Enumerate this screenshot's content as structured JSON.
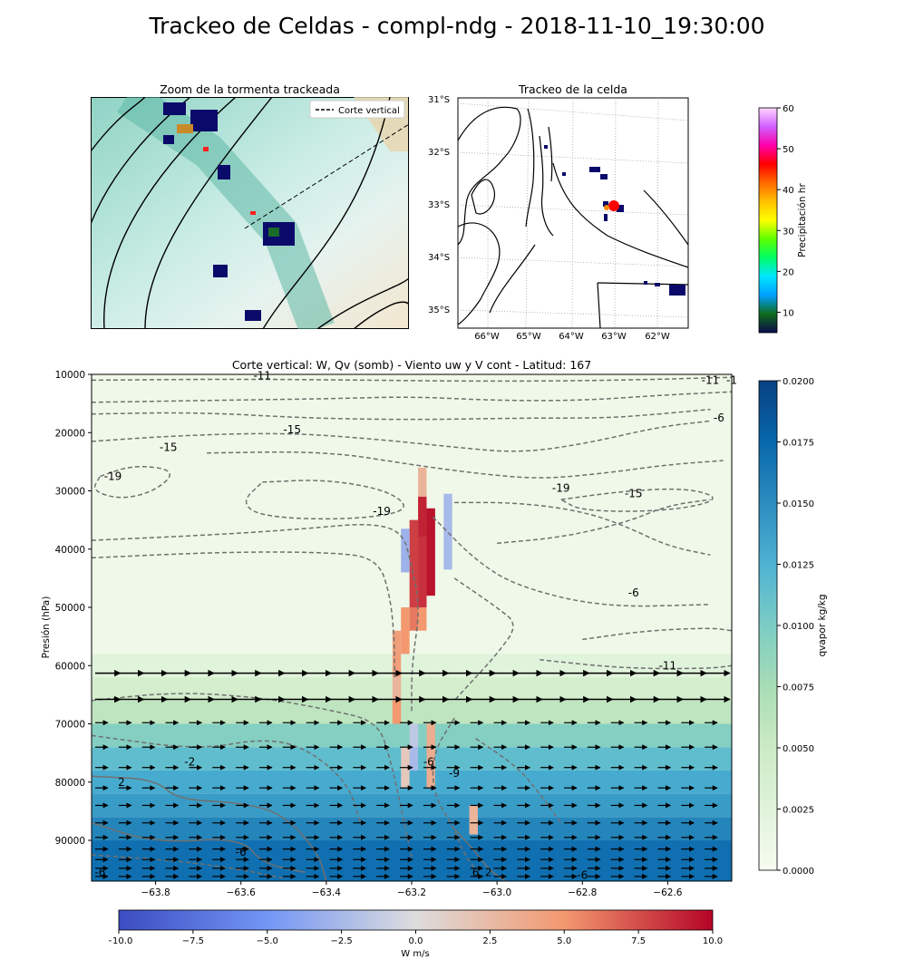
{
  "figure": {
    "title": "Trackeo de Celdas - compl-ndg - 2018-11-10_19:30:00"
  },
  "zoom_panel": {
    "title": "Zoom de la tormenta trackeada",
    "legend": {
      "label": "Corte vertical",
      "line_color": "#000000",
      "line_style": "dashed"
    },
    "placement": "upper-left"
  },
  "track_panel": {
    "title": "Trackeo de la celda",
    "lat_labels": [
      "31°S",
      "32°S",
      "33°S",
      "34°S",
      "35°S"
    ],
    "lon_labels": [
      "66°W",
      "65°W",
      "64°W",
      "63°W",
      "62°W"
    ],
    "cell_marker_colors": [
      "#ff0000",
      "#ff8c00"
    ]
  },
  "precip_colorbar": {
    "label": "Precipitación hr",
    "ticks": [
      "10",
      "20",
      "30",
      "40",
      "50",
      "60"
    ],
    "range": [
      5,
      60
    ],
    "colors": [
      "#0a0a4a",
      "#0e6b1a",
      "#00a0ff",
      "#00e6ff",
      "#00ff66",
      "#5dff00",
      "#ffff00",
      "#ffc000",
      "#ff6a00",
      "#ff0000",
      "#ff00aa",
      "#d060ff",
      "#ffd6ff"
    ]
  },
  "chart_data": {
    "type": "heatmap",
    "title": "Corte vertical: W, Qv (somb) - Viento uw y V cont - Latitud: 167",
    "xlabel": "",
    "ylabel": "Presión (hPa)",
    "xlim": [
      -63.95,
      -62.45
    ],
    "ylim": [
      97000,
      10000
    ],
    "x_ticks": [
      -63.8,
      -63.6,
      -63.4,
      -63.2,
      -63.0,
      -62.8,
      -62.6
    ],
    "x_tick_labels": [
      "−63.8",
      "−63.6",
      "−63.4",
      "−63.2",
      "−63.0",
      "−62.8",
      "−62.6"
    ],
    "y_ticks": [
      10000,
      20000,
      30000,
      40000,
      50000,
      60000,
      70000,
      80000,
      90000
    ],
    "y_tick_labels": [
      "10000",
      "20000",
      "30000",
      "40000",
      "50000",
      "60000",
      "70000",
      "80000",
      "90000"
    ],
    "qvapor_layers": [
      {
        "p_top": 10000,
        "p_bot": 58000,
        "qv": 0.0008
      },
      {
        "p_top": 58000,
        "p_bot": 62000,
        "qv": 0.0025
      },
      {
        "p_top": 62000,
        "p_bot": 66000,
        "qv": 0.004
      },
      {
        "p_top": 66000,
        "p_bot": 70000,
        "qv": 0.006
      },
      {
        "p_top": 70000,
        "p_bot": 74000,
        "qv": 0.0095
      },
      {
        "p_top": 74000,
        "p_bot": 78000,
        "qv": 0.0115
      },
      {
        "p_top": 78000,
        "p_bot": 82000,
        "qv": 0.013
      },
      {
        "p_top": 82000,
        "p_bot": 86000,
        "qv": 0.014
      },
      {
        "p_top": 86000,
        "p_bot": 90000,
        "qv": 0.0155
      },
      {
        "p_top": 90000,
        "p_bot": 97000,
        "qv": 0.017
      }
    ],
    "w_cells": [
      {
        "lon": -63.175,
        "p_top": 26000,
        "p_bot": 31000,
        "w": 3
      },
      {
        "lon": -63.175,
        "p_top": 31000,
        "p_bot": 38000,
        "w": 9
      },
      {
        "lon": -63.155,
        "p_top": 33000,
        "p_bot": 48000,
        "w": 9.5
      },
      {
        "lon": -63.195,
        "p_top": 35000,
        "p_bot": 50000,
        "w": 8
      },
      {
        "lon": -63.215,
        "p_top": 36500,
        "p_bot": 44000,
        "w": -3
      },
      {
        "lon": -63.115,
        "p_top": 30500,
        "p_bot": 43500,
        "w": -2.5
      },
      {
        "lon": -63.175,
        "p_top": 38000,
        "p_bot": 50000,
        "w": 8.5
      },
      {
        "lon": -63.195,
        "p_top": 50000,
        "p_bot": 54000,
        "w": 6
      },
      {
        "lon": -63.175,
        "p_top": 50000,
        "p_bot": 54000,
        "w": 5
      },
      {
        "lon": -63.215,
        "p_top": 50000,
        "p_bot": 58000,
        "w": 5
      },
      {
        "lon": -63.235,
        "p_top": 54000,
        "p_bot": 62000,
        "w": 4.5
      },
      {
        "lon": -63.235,
        "p_top": 62000,
        "p_bot": 66000,
        "w": 3
      },
      {
        "lon": -63.235,
        "p_top": 66000,
        "p_bot": 70000,
        "w": 5
      },
      {
        "lon": -63.195,
        "p_top": 70000,
        "p_bot": 74000,
        "w": -1.5
      },
      {
        "lon": -63.195,
        "p_top": 74000,
        "p_bot": 78000,
        "w": -2.5
      },
      {
        "lon": -63.155,
        "p_top": 70000,
        "p_bot": 81000,
        "w": 3.5
      },
      {
        "lon": -63.215,
        "p_top": 74000,
        "p_bot": 81000,
        "w": 1.5
      },
      {
        "lon": -63.055,
        "p_top": 84000,
        "p_bot": 89000,
        "w": 3
      }
    ],
    "contour_labels": [
      {
        "text": "-11",
        "lon": -63.55,
        "p": 10200
      },
      {
        "text": "-11",
        "lon": -62.5,
        "p": 11000
      },
      {
        "text": "-1",
        "lon": -62.45,
        "p": 11000
      },
      {
        "text": "-6",
        "lon": -62.48,
        "p": 17500
      },
      {
        "text": "-15",
        "lon": -63.48,
        "p": 19500
      },
      {
        "text": "-15",
        "lon": -63.77,
        "p": 22500
      },
      {
        "text": "-19",
        "lon": -63.9,
        "p": 27500
      },
      {
        "text": "-19",
        "lon": -62.85,
        "p": 29500
      },
      {
        "text": "-15",
        "lon": -62.68,
        "p": 30500
      },
      {
        "text": "-19",
        "lon": -63.27,
        "p": 33500
      },
      {
        "text": "-6",
        "lon": -62.68,
        "p": 47500
      },
      {
        "text": "-11",
        "lon": -62.6,
        "p": 60000
      },
      {
        "text": "-2",
        "lon": -63.72,
        "p": 76500
      },
      {
        "text": "-6",
        "lon": -63.16,
        "p": 76500
      },
      {
        "text": "2",
        "lon": -63.88,
        "p": 80000
      },
      {
        "text": "-9",
        "lon": -63.1,
        "p": 78500
      },
      {
        "text": "-6",
        "lon": -63.6,
        "p": 92000
      },
      {
        "text": "-6",
        "lon": -63.93,
        "p": 95500
      },
      {
        "text": "6",
        "lon": -63.05,
        "p": 95500
      },
      {
        "text": "2",
        "lon": -63.02,
        "p": 95500
      },
      {
        "text": "-6",
        "lon": -62.8,
        "p": 96000
      }
    ],
    "contours": [
      {
        "name": "c1",
        "style": "dashed",
        "points": [
          [
            -63.95,
            11000
          ],
          [
            -63.6,
            10800
          ],
          [
            -63.3,
            11000
          ],
          [
            -63.0,
            11200
          ],
          [
            -62.7,
            11000
          ],
          [
            -62.45,
            10500
          ]
        ]
      },
      {
        "name": "c2",
        "style": "dashed",
        "points": [
          [
            -63.95,
            14800
          ],
          [
            -63.7,
            14500
          ],
          [
            -63.4,
            14200
          ],
          [
            -63.2,
            13800
          ],
          [
            -63.0,
            14500
          ],
          [
            -62.8,
            14500
          ],
          [
            -62.6,
            13500
          ],
          [
            -62.45,
            13000
          ]
        ]
      },
      {
        "name": "c3",
        "style": "dashed",
        "points": [
          [
            -63.95,
            16800
          ],
          [
            -63.7,
            16500
          ],
          [
            -63.45,
            17500
          ],
          [
            -63.2,
            17800
          ],
          [
            -62.95,
            17500
          ],
          [
            -62.75,
            17500
          ],
          [
            -62.65,
            17000
          ],
          [
            -62.5,
            16000
          ]
        ]
      },
      {
        "name": "c4",
        "style": "dashed",
        "points": [
          [
            -63.95,
            21500
          ],
          [
            -63.75,
            20500
          ],
          [
            -63.5,
            20000
          ],
          [
            -63.3,
            21000
          ],
          [
            -63.1,
            22500
          ],
          [
            -62.95,
            23500
          ],
          [
            -62.8,
            22000
          ],
          [
            -62.62,
            19000
          ],
          [
            -62.5,
            18000
          ]
        ]
      },
      {
        "name": "c5",
        "style": "dashed",
        "points": [
          [
            -63.68,
            23500
          ],
          [
            -63.4,
            23200
          ],
          [
            -63.2,
            25500
          ],
          [
            -63.05,
            27000
          ],
          [
            -62.9,
            28000
          ],
          [
            -62.75,
            27000
          ],
          [
            -62.6,
            25500
          ],
          [
            -62.47,
            24800
          ]
        ]
      },
      {
        "name": "c6",
        "style": "closed-dashed",
        "points": [
          [
            -63.93,
            27500
          ],
          [
            -63.85,
            25500
          ],
          [
            -63.75,
            26500
          ],
          [
            -63.8,
            30000
          ],
          [
            -63.88,
            31500
          ],
          [
            -63.95,
            30000
          ],
          [
            -63.93,
            27500
          ]
        ]
      },
      {
        "name": "c7",
        "style": "closed-dashed",
        "points": [
          [
            -63.55,
            28500
          ],
          [
            -63.4,
            28000
          ],
          [
            -63.25,
            30000
          ],
          [
            -63.2,
            33500
          ],
          [
            -63.35,
            35000
          ],
          [
            -63.55,
            34500
          ],
          [
            -63.6,
            32000
          ],
          [
            -63.55,
            28500
          ]
        ]
      },
      {
        "name": "c8",
        "style": "dashed",
        "points": [
          [
            -63.95,
            38500
          ],
          [
            -63.65,
            37500
          ],
          [
            -63.45,
            36500
          ],
          [
            -63.3,
            35500
          ],
          [
            -63.22,
            37000
          ],
          [
            -63.2,
            43000
          ],
          [
            -63.18,
            50000
          ],
          [
            -63.2,
            60000
          ],
          [
            -63.2,
            68000
          ]
        ]
      },
      {
        "name": "c9",
        "style": "dashed",
        "points": [
          [
            -63.95,
            41500
          ],
          [
            -63.65,
            40500
          ],
          [
            -63.4,
            40500
          ],
          [
            -63.28,
            41500
          ],
          [
            -63.25,
            48000
          ],
          [
            -63.24,
            56000
          ],
          [
            -63.24,
            62000
          ]
        ]
      },
      {
        "name": "c10",
        "style": "dashed",
        "points": [
          [
            -63.0,
            39000
          ],
          [
            -62.85,
            38000
          ],
          [
            -62.7,
            35500
          ],
          [
            -62.6,
            32500
          ],
          [
            -62.5,
            31500
          ]
        ]
      },
      {
        "name": "c11",
        "style": "closed-dashed",
        "points": [
          [
            -62.85,
            31500
          ],
          [
            -62.7,
            30000
          ],
          [
            -62.55,
            29500
          ],
          [
            -62.47,
            31500
          ],
          [
            -62.6,
            33500
          ],
          [
            -62.8,
            33500
          ],
          [
            -62.85,
            31500
          ]
        ]
      },
      {
        "name": "c12",
        "style": "dashed",
        "points": [
          [
            -63.1,
            32000
          ],
          [
            -62.95,
            32000
          ],
          [
            -62.8,
            33500
          ],
          [
            -62.7,
            36000
          ],
          [
            -62.6,
            39500
          ],
          [
            -62.5,
            41000
          ]
        ]
      },
      {
        "name": "c13",
        "style": "dashed",
        "points": [
          [
            -63.15,
            34500
          ],
          [
            -63.05,
            42000
          ],
          [
            -62.95,
            46500
          ],
          [
            -62.75,
            50000
          ],
          [
            -62.5,
            49500
          ]
        ]
      },
      {
        "name": "c14",
        "style": "dashed",
        "points": [
          [
            -63.1,
            45000
          ],
          [
            -63.0,
            50000
          ],
          [
            -62.95,
            53000
          ],
          [
            -63.0,
            58000
          ],
          [
            -63.05,
            62000
          ],
          [
            -63.1,
            66000
          ]
        ]
      },
      {
        "name": "c15",
        "style": "dashed",
        "points": [
          [
            -62.8,
            55500
          ],
          [
            -62.65,
            54000
          ],
          [
            -62.5,
            53500
          ],
          [
            -62.45,
            54000
          ]
        ]
      },
      {
        "name": "c16",
        "style": "dashed",
        "points": [
          [
            -62.9,
            59000
          ],
          [
            -62.7,
            60500
          ],
          [
            -62.5,
            60500
          ],
          [
            -62.45,
            60000
          ]
        ]
      },
      {
        "name": "c17",
        "style": "dashed",
        "points": [
          [
            -63.95,
            66000
          ],
          [
            -63.75,
            64500
          ],
          [
            -63.55,
            65500
          ],
          [
            -63.4,
            67500
          ],
          [
            -63.28,
            69500
          ],
          [
            -63.25,
            76000
          ],
          [
            -63.22,
            86000
          ],
          [
            -63.2,
            93000
          ]
        ]
      },
      {
        "name": "c18",
        "style": "dashed",
        "points": [
          [
            -63.95,
            72000
          ],
          [
            -63.7,
            74500
          ],
          [
            -63.55,
            72500
          ],
          [
            -63.45,
            74000
          ],
          [
            -63.35,
            80000
          ],
          [
            -63.32,
            87000
          ]
        ]
      },
      {
        "name": "c19",
        "style": "dashed",
        "points": [
          [
            -63.1,
            69000
          ],
          [
            -63.15,
            75000
          ],
          [
            -63.15,
            82000
          ],
          [
            -63.1,
            88000
          ],
          [
            -63.08,
            92000
          ],
          [
            -63.05,
            95000
          ]
        ]
      },
      {
        "name": "c20",
        "style": "dashed",
        "points": [
          [
            -63.05,
            72500
          ],
          [
            -62.95,
            77500
          ],
          [
            -62.9,
            82000
          ],
          [
            -62.85,
            87000
          ]
        ]
      },
      {
        "name": "c21",
        "style": "solid",
        "points": [
          [
            -63.95,
            79000
          ],
          [
            -63.8,
            79500
          ],
          [
            -63.75,
            83000
          ],
          [
            -63.6,
            83500
          ],
          [
            -63.5,
            85500
          ],
          [
            -63.42,
            92000
          ],
          [
            -63.4,
            97000
          ]
        ]
      },
      {
        "name": "c22",
        "style": "solid",
        "points": [
          [
            -63.95,
            87000
          ],
          [
            -63.8,
            90500
          ],
          [
            -63.6,
            89500
          ],
          [
            -63.55,
            94000
          ],
          [
            -63.45,
            95500
          ]
        ]
      },
      {
        "name": "c23",
        "style": "dashed",
        "points": [
          [
            -63.95,
            92500
          ],
          [
            -63.75,
            93500
          ],
          [
            -63.6,
            95000
          ],
          [
            -63.5,
            96500
          ]
        ]
      },
      {
        "name": "c24",
        "style": "solid",
        "points": [
          [
            -63.1,
            88000
          ],
          [
            -63.05,
            92000
          ],
          [
            -63.02,
            95000
          ],
          [
            -62.98,
            97000
          ]
        ]
      }
    ],
    "wind_rows": [
      {
        "p": 61300,
        "long_arrows": true
      },
      {
        "p": 65800,
        "long_arrows": true
      },
      {
        "p": 69800,
        "long_arrows": false
      },
      {
        "p": 74000,
        "long_arrows": false
      },
      {
        "p": 77500,
        "long_arrows": false
      },
      {
        "p": 81000,
        "long_arrows": false
      },
      {
        "p": 84000,
        "long_arrows": false
      },
      {
        "p": 87000,
        "long_arrows": false
      },
      {
        "p": 89500,
        "long_arrows": false
      },
      {
        "p": 91500,
        "long_arrows": false
      },
      {
        "p": 93300,
        "long_arrows": false
      },
      {
        "p": 94800,
        "long_arrows": false
      },
      {
        "p": 96200,
        "long_arrows": false
      }
    ]
  },
  "qv_colorbar": {
    "label": "qvapor kg/kg",
    "ticks": [
      "0.0000",
      "0.0025",
      "0.0050",
      "0.0075",
      "0.0100",
      "0.0125",
      "0.0150",
      "0.0175",
      "0.0200"
    ],
    "range": [
      0,
      0.02
    ]
  },
  "w_colorbar": {
    "label": "W m/s",
    "ticks": [
      "−10.0",
      "−7.5",
      "−5.0",
      "−2.5",
      "0.0",
      "2.5",
      "5.0",
      "7.5",
      "10.0"
    ],
    "range": [
      -10,
      10
    ]
  }
}
